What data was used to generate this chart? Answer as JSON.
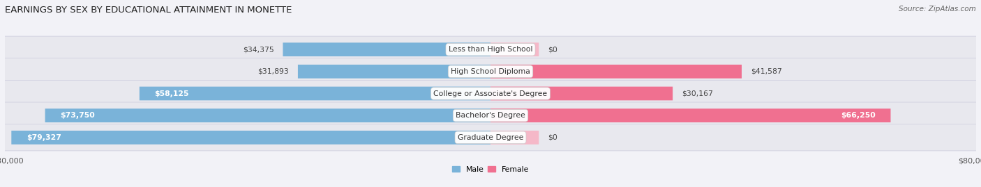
{
  "title": "EARNINGS BY SEX BY EDUCATIONAL ATTAINMENT IN MONETTE",
  "source": "Source: ZipAtlas.com",
  "categories": [
    "Less than High School",
    "High School Diploma",
    "College or Associate's Degree",
    "Bachelor's Degree",
    "Graduate Degree"
  ],
  "male_values": [
    34375,
    31893,
    58125,
    73750,
    79327
  ],
  "female_values": [
    0,
    41587,
    30167,
    66250,
    0
  ],
  "male_color": "#7ab3d9",
  "female_color": "#f07090",
  "female_zero_color": "#f5b8c8",
  "row_bg_color": "#e8e8ee",
  "bg_color": "#f2f2f7",
  "axis_max": 80000,
  "bar_height": 0.62,
  "title_fontsize": 9.5,
  "source_fontsize": 7.5,
  "label_fontsize": 7.8,
  "tick_fontsize": 8.0,
  "zero_stub": 8000
}
